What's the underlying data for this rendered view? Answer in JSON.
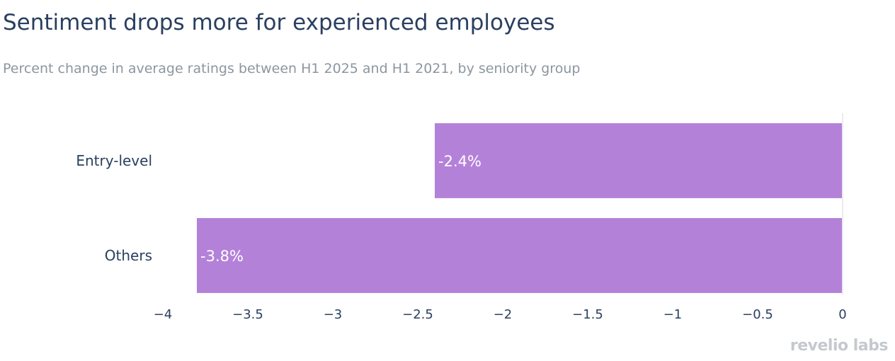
{
  "header": {
    "title": "Sentiment drops more for experienced employees",
    "subtitle": "Percent change in average ratings between H1 2025 and H1 2021, by seniority group"
  },
  "brand": {
    "logo_text": "revelio labs"
  },
  "colors": {
    "bar": "#b481d9",
    "title": "#2a3f5f",
    "subtitle": "#8c969f",
    "tick": "#2a3f5f",
    "zeroline": "#e8ebf0",
    "label": "#ffffff"
  },
  "chart_data": {
    "type": "bar",
    "orientation": "horizontal",
    "categories": [
      "Entry-level",
      "Others"
    ],
    "values": [
      -2.4,
      -3.8
    ],
    "data_labels": [
      "-2.4%",
      "-3.8%"
    ],
    "xlim": [
      -4,
      0
    ],
    "xticks": [
      -4,
      -3.5,
      -3,
      -2.5,
      -2,
      -1.5,
      -1,
      -0.5,
      0
    ],
    "xtick_labels": [
      "−4",
      "−3.5",
      "−3",
      "−2.5",
      "−2",
      "−1.5",
      "−1",
      "−0.5",
      "0"
    ],
    "grid": false,
    "legend": "none"
  }
}
